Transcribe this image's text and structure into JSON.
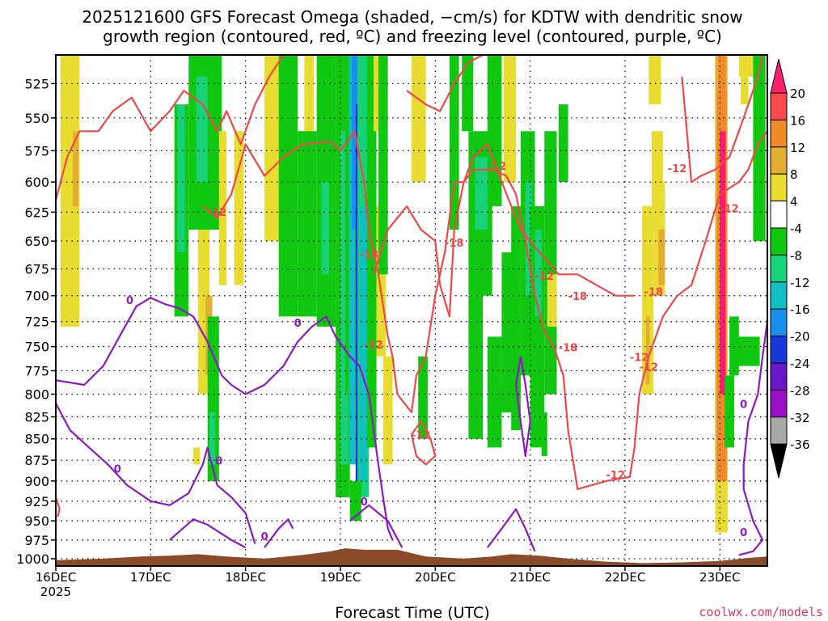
{
  "chart_data": {
    "type": "heatmap",
    "title_line1": "2025121600 GFS Forecast Omega (shaded, −cm/s) for KDTW with dendritic snow",
    "title_line2": "growth region (contoured, red, ºC) and freezing level (contoured, purple, ºC)",
    "xlabel": "Forecast Time (UTC)",
    "credit": "coolwx.com/models",
    "x_ticks": [
      "16DEC",
      "17DEC",
      "18DEC",
      "19DEC",
      "20DEC",
      "21DEC",
      "22DEC",
      "23DEC"
    ],
    "x_year": "2025",
    "y_ticks": [
      "525",
      "550",
      "575",
      "600",
      "625",
      "650",
      "675",
      "700",
      "725",
      "750",
      "775",
      "800",
      "825",
      "850",
      "875",
      "900",
      "925",
      "950",
      "975",
      "1000"
    ],
    "y_unit": "hPa",
    "y_range": [
      1010,
      505
    ],
    "x_range_days": [
      0,
      7.5
    ],
    "grid": true,
    "colorbar": {
      "levels": [
        20,
        16,
        12,
        8,
        4,
        -4,
        -8,
        -12,
        -16,
        -20,
        -24,
        -28,
        -32,
        -36
      ],
      "colors": [
        "#ff2070",
        "#f84a4a",
        "#f08a28",
        "#e2ae30",
        "#e8dc30",
        "#ffffff",
        "#10c810",
        "#18d27a",
        "#10c0c0",
        "#1890f0",
        "#1838d8",
        "#6818c8",
        "#9a10c8",
        "#a8a8a8",
        "#000000"
      ]
    },
    "series": [
      {
        "field": "dendritic snow growth region",
        "contour_labels": [
          "-12",
          "-18",
          "-12",
          "-18",
          "-12",
          "-18",
          "-12",
          "-12",
          "-18",
          "-12",
          "-18",
          "-12",
          "-12",
          "-18",
          "-12",
          "-12"
        ],
        "color": "#f04848"
      },
      {
        "field": "freezing level",
        "contour_labels": [
          "0",
          "0",
          "0",
          "0",
          "0",
          "0",
          "0",
          "0"
        ],
        "color": "#8c18c8"
      }
    ]
  }
}
